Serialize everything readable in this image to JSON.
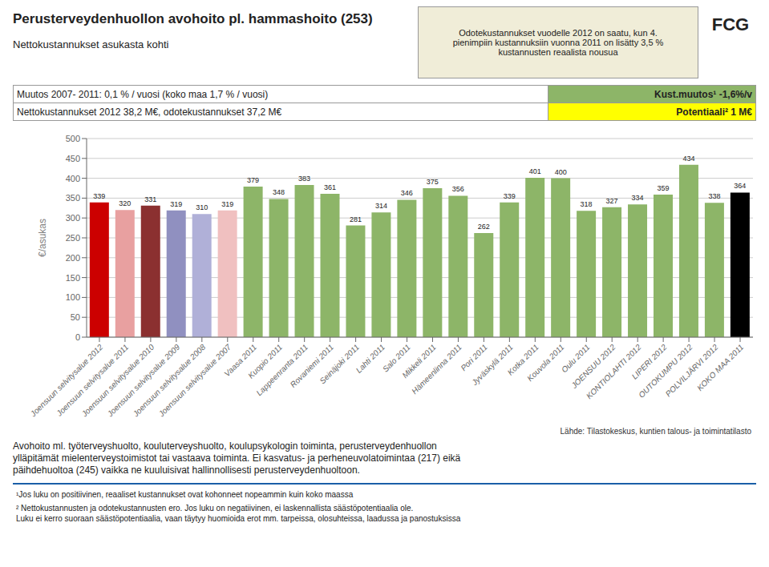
{
  "chart_data": {
    "type": "bar",
    "title": "Perusterveydenhuollon avohoito pl. hammashoito (253)",
    "subtitle": "Nettokustannukset asukasta kohti",
    "info_box": "Odotekustannukset vuodelle 2012 on saatu, kun 4.\npienimpiin kustannuksiin vuonna 2011 on lisätty 3,5 %\nkustannusten reaalista nousua",
    "logo": "FCG",
    "rows": [
      {
        "left": "Muutos 2007- 2011: 0,1 % / vuosi (koko maa 1,7 % / vuosi)",
        "right": "Kust.muutos¹  -1,6%/v",
        "color": "#8db568"
      },
      {
        "left": "Nettokustannukset 2012 38,2 M€, odotekustannukset 37,2 M€",
        "right": "Potentiaali²  1 M€",
        "color": "#ffff00"
      }
    ],
    "ylabel": "€/asukas",
    "categories": [
      "Joensuun selvitysalue 2012",
      "Joensuun selvitysalue 2011",
      "Joensuun selvitysalue 2010",
      "Joensuun selvitysalue 2009",
      "Joensuun selvitysalue 2008",
      "Joensuun selvitysalue 2007",
      "Vaasa 2011",
      "Kuopio 2011",
      "Lappeenranta 2011",
      "Rovaniemi 2011",
      "Seinäjoki 2011",
      "Lahti 2011",
      "Salo 2011",
      "Mikkeli 2011",
      "Hämeenlinna 2011",
      "Pori 2011",
      "Jyväskylä 2011",
      "Kotka 2011",
      "Kouvola 2011",
      "Oulu 2011",
      "JOENSUU 2012",
      "KONTIOLAHTI 2012",
      "LIPERI 2012",
      "OUTOKUMPU 2012",
      "POLVILJÄRVI 2012",
      "KOKO MAA 2011"
    ],
    "values": [
      339,
      320,
      331,
      319,
      310,
      319,
      379,
      348,
      383,
      361,
      281,
      314,
      346,
      375,
      356,
      262,
      339,
      401,
      400,
      318,
      327,
      334,
      359,
      434,
      338,
      364
    ],
    "colors": [
      "#cc0000",
      "#e8a0a0",
      "#8b3030",
      "#9090c0",
      "#b0b0d8",
      "#f0c0c0",
      "#8db568",
      "#8db568",
      "#8db568",
      "#8db568",
      "#8db568",
      "#8db568",
      "#8db568",
      "#8db568",
      "#8db568",
      "#8db568",
      "#8db568",
      "#8db568",
      "#8db568",
      "#8db568",
      "#8db568",
      "#8db568",
      "#8db568",
      "#8db568",
      "#8db568",
      "#000000"
    ],
    "ylim": [
      0,
      500
    ],
    "yticks": [
      0,
      50,
      100,
      150,
      200,
      250,
      300,
      350,
      400,
      450,
      500
    ],
    "grid": true,
    "data_labels": true,
    "source": "Lähde: Tilastokeskus, kuntien talous- ja toimintatilasto",
    "body_text": "Avohoito ml. työterveyshuolto, kouluterveyshuolto, koulupsykologin toiminta, perusterveydenhuollon\nylläpitämät mielenterveystoimistot tai vastaava toiminta. Ei kasvatus- ja perheneuvolatoimintaa (217) eikä\npäihdehuoltoa (245) vaikka ne kuuluisivat hallinnollisesti perusterveydenhuoltoon.",
    "footnotes": [
      "¹Jos luku on positiivinen, reaaliset kustannukset ovat kohonneet nopeammin kuin koko maassa",
      "² Nettokustannusten ja odotekustannusten ero. Jos luku on negatiivinen, ei laskennallista säästöpotentiaalia ole.\nLuku ei kerro suoraan säästöpotentiaalia, vaan täytyy huomioida erot mm. tarpeissa, olosuhteissa, laadussa ja panostuksissa"
    ]
  }
}
